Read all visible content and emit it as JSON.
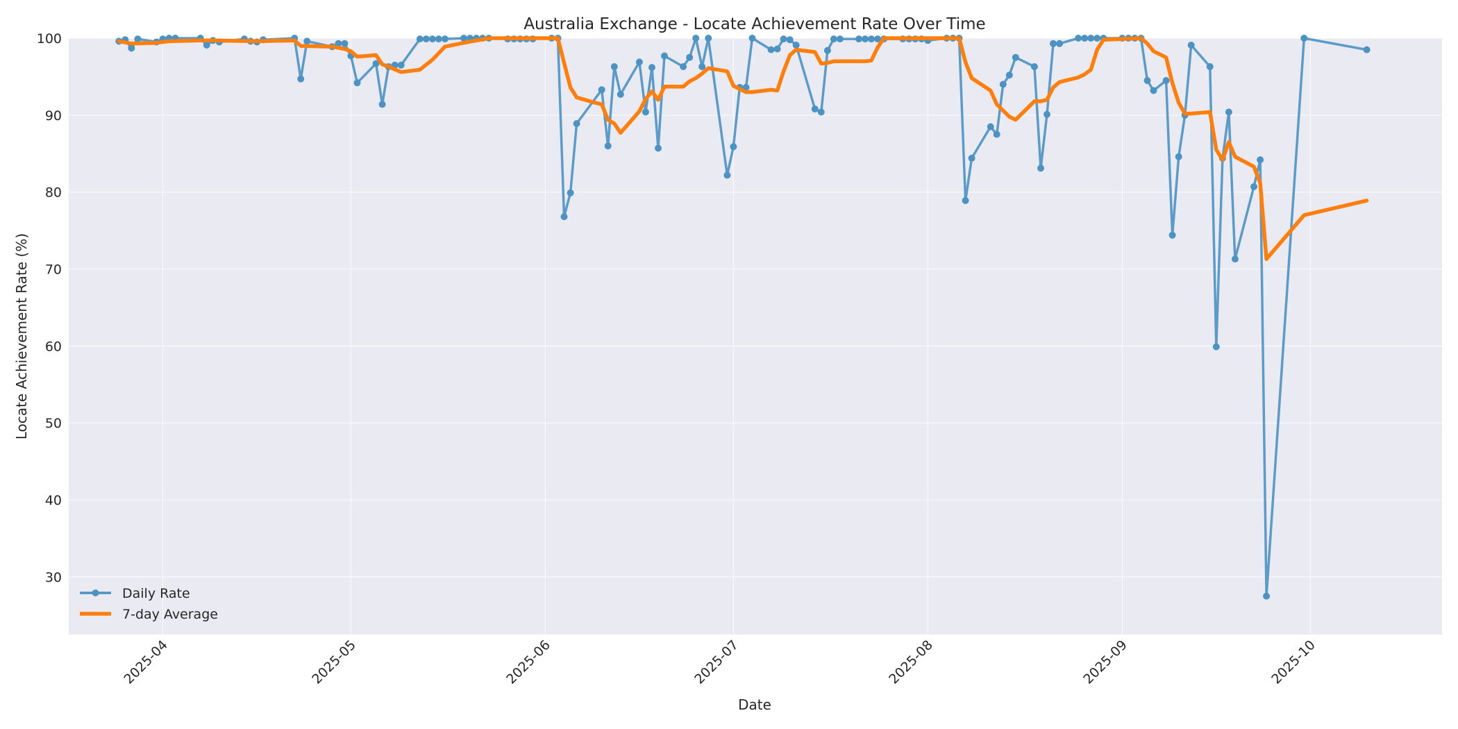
{
  "chart_data": {
    "type": "line",
    "title": "Australia Exchange - Locate Achievement Rate Over Time",
    "xlabel": "Date",
    "ylabel": "Locate Achievement Rate (%)",
    "xlim": [
      "2025-03-17",
      "2025-10-22"
    ],
    "ylim": [
      22.5,
      100
    ],
    "yticks": [
      30,
      40,
      50,
      60,
      70,
      80,
      90,
      100
    ],
    "xticks": [
      "2025-04",
      "2025-05",
      "2025-06",
      "2025-07",
      "2025-08",
      "2025-09",
      "2025-10"
    ],
    "grid": true,
    "legend_position": "lower-left",
    "colors": {
      "background": "#eaeaf2",
      "daily": "#4c92c3",
      "avg": "#ff7f0e"
    },
    "series": [
      {
        "name": "Daily Rate",
        "style": "line-markers",
        "points": [
          [
            "2025-03-25",
            99.6
          ],
          [
            "2025-03-26",
            99.8
          ],
          [
            "2025-03-27",
            98.7
          ],
          [
            "2025-03-28",
            99.9
          ],
          [
            "2025-03-31",
            99.5
          ],
          [
            "2025-04-01",
            99.9
          ],
          [
            "2025-04-02",
            100
          ],
          [
            "2025-04-03",
            100
          ],
          [
            "2025-04-07",
            100
          ],
          [
            "2025-04-08",
            99.1
          ],
          [
            "2025-04-09",
            99.7
          ],
          [
            "2025-04-10",
            99.5
          ],
          [
            "2025-04-14",
            99.9
          ],
          [
            "2025-04-15",
            99.6
          ],
          [
            "2025-04-16",
            99.5
          ],
          [
            "2025-04-17",
            99.8
          ],
          [
            "2025-04-22",
            100
          ],
          [
            "2025-04-23",
            94.7
          ],
          [
            "2025-04-24",
            99.6
          ],
          [
            "2025-04-28",
            98.9
          ],
          [
            "2025-04-29",
            99.3
          ],
          [
            "2025-04-30",
            99.3
          ],
          [
            "2025-05-01",
            97.7
          ],
          [
            "2025-05-02",
            94.2
          ],
          [
            "2025-05-05",
            96.7
          ],
          [
            "2025-05-06",
            91.4
          ],
          [
            "2025-05-07",
            96.3
          ],
          [
            "2025-05-08",
            96.5
          ],
          [
            "2025-05-09",
            96.5
          ],
          [
            "2025-05-12",
            99.9
          ],
          [
            "2025-05-13",
            99.9
          ],
          [
            "2025-05-14",
            99.9
          ],
          [
            "2025-05-15",
            99.9
          ],
          [
            "2025-05-16",
            99.9
          ],
          [
            "2025-05-19",
            100
          ],
          [
            "2025-05-20",
            100
          ],
          [
            "2025-05-21",
            100
          ],
          [
            "2025-05-22",
            100
          ],
          [
            "2025-05-23",
            100
          ],
          [
            "2025-05-26",
            99.9
          ],
          [
            "2025-05-27",
            99.9
          ],
          [
            "2025-05-28",
            99.9
          ],
          [
            "2025-05-29",
            99.9
          ],
          [
            "2025-05-30",
            99.9
          ],
          [
            "2025-06-02",
            100
          ],
          [
            "2025-06-03",
            100
          ],
          [
            "2025-06-04",
            76.8
          ],
          [
            "2025-06-05",
            79.9
          ],
          [
            "2025-06-06",
            88.9
          ],
          [
            "2025-06-10",
            93.3
          ],
          [
            "2025-06-11",
            86.0
          ],
          [
            "2025-06-12",
            96.3
          ],
          [
            "2025-06-13",
            92.7
          ],
          [
            "2025-06-16",
            96.9
          ],
          [
            "2025-06-17",
            90.4
          ],
          [
            "2025-06-18",
            96.2
          ],
          [
            "2025-06-19",
            85.7
          ],
          [
            "2025-06-20",
            97.7
          ],
          [
            "2025-06-23",
            96.3
          ],
          [
            "2025-06-24",
            97.5
          ],
          [
            "2025-06-25",
            100
          ],
          [
            "2025-06-26",
            96.3
          ],
          [
            "2025-06-27",
            100
          ],
          [
            "2025-06-30",
            82.2
          ],
          [
            "2025-07-01",
            85.9
          ],
          [
            "2025-07-02",
            93.6
          ],
          [
            "2025-07-03",
            93.6
          ],
          [
            "2025-07-04",
            100
          ],
          [
            "2025-07-07",
            98.5
          ],
          [
            "2025-07-08",
            98.6
          ],
          [
            "2025-07-09",
            99.9
          ],
          [
            "2025-07-10",
            99.8
          ],
          [
            "2025-07-11",
            99.1
          ],
          [
            "2025-07-14",
            90.8
          ],
          [
            "2025-07-15",
            90.4
          ],
          [
            "2025-07-16",
            98.4
          ],
          [
            "2025-07-17",
            99.9
          ],
          [
            "2025-07-18",
            99.9
          ],
          [
            "2025-07-21",
            99.9
          ],
          [
            "2025-07-22",
            99.9
          ],
          [
            "2025-07-23",
            99.9
          ],
          [
            "2025-07-24",
            99.9
          ],
          [
            "2025-07-25",
            99.9
          ],
          [
            "2025-07-28",
            99.9
          ],
          [
            "2025-07-29",
            99.9
          ],
          [
            "2025-07-30",
            99.9
          ],
          [
            "2025-07-31",
            99.9
          ],
          [
            "2025-08-01",
            99.7
          ],
          [
            "2025-08-04",
            100
          ],
          [
            "2025-08-05",
            100
          ],
          [
            "2025-08-06",
            100
          ],
          [
            "2025-08-07",
            78.9
          ],
          [
            "2025-08-08",
            84.4
          ],
          [
            "2025-08-11",
            88.5
          ],
          [
            "2025-08-12",
            87.5
          ],
          [
            "2025-08-13",
            94.0
          ],
          [
            "2025-08-14",
            95.2
          ],
          [
            "2025-08-15",
            97.5
          ],
          [
            "2025-08-18",
            96.3
          ],
          [
            "2025-08-19",
            83.1
          ],
          [
            "2025-08-20",
            90.1
          ],
          [
            "2025-08-21",
            99.3
          ],
          [
            "2025-08-22",
            99.3
          ],
          [
            "2025-08-25",
            100
          ],
          [
            "2025-08-26",
            100
          ],
          [
            "2025-08-27",
            100
          ],
          [
            "2025-08-28",
            100
          ],
          [
            "2025-08-29",
            100
          ],
          [
            "2025-09-01",
            100
          ],
          [
            "2025-09-02",
            100
          ],
          [
            "2025-09-03",
            100
          ],
          [
            "2025-09-04",
            100
          ],
          [
            "2025-09-05",
            94.5
          ],
          [
            "2025-09-06",
            93.2
          ],
          [
            "2025-09-08",
            94.5
          ],
          [
            "2025-09-09",
            74.4
          ],
          [
            "2025-09-10",
            84.6
          ],
          [
            "2025-09-11",
            90.0
          ],
          [
            "2025-09-12",
            99.1
          ],
          [
            "2025-09-15",
            96.3
          ],
          [
            "2025-09-16",
            59.9
          ],
          [
            "2025-09-17",
            84.4
          ],
          [
            "2025-09-18",
            90.4
          ],
          [
            "2025-09-19",
            71.3
          ],
          [
            "2025-09-22",
            80.7
          ],
          [
            "2025-09-23",
            84.2
          ],
          [
            "2025-09-24",
            27.5
          ],
          [
            "2025-09-30",
            100
          ],
          [
            "2025-10-10",
            98.5
          ]
        ]
      },
      {
        "name": "7-day Average",
        "style": "line",
        "points": [
          [
            "2025-03-25",
            99.6
          ],
          [
            "2025-03-27",
            99.3
          ],
          [
            "2025-03-31",
            99.4
          ],
          [
            "2025-04-02",
            99.6
          ],
          [
            "2025-04-07",
            99.7
          ],
          [
            "2025-04-09",
            99.7
          ],
          [
            "2025-04-16",
            99.6
          ],
          [
            "2025-04-22",
            99.7
          ],
          [
            "2025-04-23",
            99.0
          ],
          [
            "2025-04-28",
            98.9
          ],
          [
            "2025-04-30",
            98.6
          ],
          [
            "2025-05-01",
            98.3
          ],
          [
            "2025-05-02",
            97.6
          ],
          [
            "2025-05-05",
            97.8
          ],
          [
            "2025-05-06",
            96.6
          ],
          [
            "2025-05-07",
            96.3
          ],
          [
            "2025-05-09",
            95.6
          ],
          [
            "2025-05-12",
            95.9
          ],
          [
            "2025-05-14",
            97.2
          ],
          [
            "2025-05-16",
            98.9
          ],
          [
            "2025-05-19",
            99.4
          ],
          [
            "2025-05-23",
            100
          ],
          [
            "2025-06-03",
            100
          ],
          [
            "2025-06-04",
            96.8
          ],
          [
            "2025-06-05",
            93.6
          ],
          [
            "2025-06-06",
            92.3
          ],
          [
            "2025-06-09",
            91.6
          ],
          [
            "2025-06-10",
            91.4
          ],
          [
            "2025-06-11",
            89.4
          ],
          [
            "2025-06-12",
            88.9
          ],
          [
            "2025-06-13",
            87.7
          ],
          [
            "2025-06-16",
            90.5
          ],
          [
            "2025-06-17",
            92.1
          ],
          [
            "2025-06-18",
            93.1
          ],
          [
            "2025-06-19",
            92.0
          ],
          [
            "2025-06-20",
            93.7
          ],
          [
            "2025-06-23",
            93.7
          ],
          [
            "2025-06-24",
            94.4
          ],
          [
            "2025-06-25",
            94.8
          ],
          [
            "2025-06-26",
            95.4
          ],
          [
            "2025-06-27",
            96.1
          ],
          [
            "2025-06-30",
            95.7
          ],
          [
            "2025-07-01",
            93.8
          ],
          [
            "2025-07-03",
            93.0
          ],
          [
            "2025-07-04",
            93.0
          ],
          [
            "2025-07-07",
            93.3
          ],
          [
            "2025-07-08",
            93.2
          ],
          [
            "2025-07-09",
            95.7
          ],
          [
            "2025-07-10",
            97.8
          ],
          [
            "2025-07-11",
            98.5
          ],
          [
            "2025-07-14",
            98.2
          ],
          [
            "2025-07-15",
            96.7
          ],
          [
            "2025-07-16",
            96.8
          ],
          [
            "2025-07-17",
            97.0
          ],
          [
            "2025-07-22",
            97.0
          ],
          [
            "2025-07-23",
            97.1
          ],
          [
            "2025-07-24",
            98.8
          ],
          [
            "2025-07-25",
            100
          ],
          [
            "2025-08-06",
            100
          ],
          [
            "2025-08-07",
            96.9
          ],
          [
            "2025-08-08",
            94.8
          ],
          [
            "2025-08-11",
            93.2
          ],
          [
            "2025-08-12",
            91.4
          ],
          [
            "2025-08-13",
            90.6
          ],
          [
            "2025-08-14",
            89.8
          ],
          [
            "2025-08-15",
            89.4
          ],
          [
            "2025-08-18",
            91.8
          ],
          [
            "2025-08-19",
            91.8
          ],
          [
            "2025-08-20",
            92.0
          ],
          [
            "2025-08-21",
            93.6
          ],
          [
            "2025-08-22",
            94.3
          ],
          [
            "2025-08-25",
            94.9
          ],
          [
            "2025-08-26",
            95.3
          ],
          [
            "2025-08-27",
            95.9
          ],
          [
            "2025-08-28",
            98.5
          ],
          [
            "2025-08-29",
            99.8
          ],
          [
            "2025-09-04",
            100
          ],
          [
            "2025-09-05",
            99.3
          ],
          [
            "2025-09-06",
            98.3
          ],
          [
            "2025-09-08",
            97.5
          ],
          [
            "2025-09-09",
            94.2
          ],
          [
            "2025-09-10",
            91.6
          ],
          [
            "2025-09-11",
            90.2
          ],
          [
            "2025-09-12",
            90.2
          ],
          [
            "2025-09-15",
            90.4
          ],
          [
            "2025-09-16",
            85.5
          ],
          [
            "2025-09-17",
            84.2
          ],
          [
            "2025-09-18",
            86.5
          ],
          [
            "2025-09-19",
            84.6
          ],
          [
            "2025-09-22",
            83.3
          ],
          [
            "2025-09-23",
            81.2
          ],
          [
            "2025-09-24",
            71.3
          ],
          [
            "2025-09-30",
            77.0
          ],
          [
            "2025-10-10",
            78.9
          ]
        ]
      }
    ]
  }
}
